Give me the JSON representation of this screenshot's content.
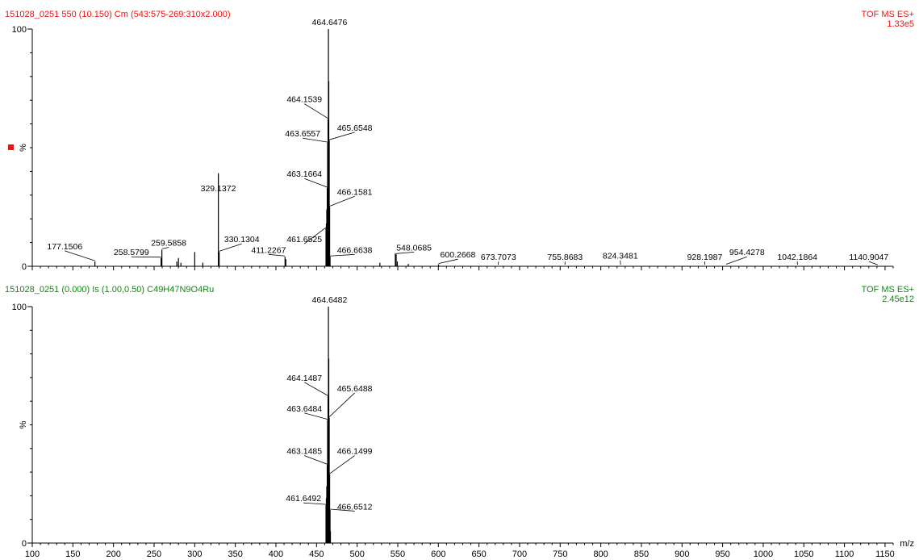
{
  "colors": {
    "measured": "#ee1111",
    "model": "#118811",
    "trace": "#000000"
  },
  "chart_data": [
    {
      "type": "line",
      "header_left": "151028_0251 550 (10.150) Cm (543:575-269:310x2.000)",
      "header_right_1": "TOF MS ES+",
      "header_right_2": "1.33e5",
      "ylabel": "%",
      "yticks": [
        "0",
        "100"
      ],
      "xlabel": "",
      "xlim": [
        100,
        1160
      ],
      "ylim": [
        0,
        100
      ],
      "peaks": [
        {
          "x": 177.1506,
          "y": 2.0
        },
        {
          "x": 258.5799,
          "y": 3.5
        },
        {
          "x": 259.5858,
          "y": 7.0
        },
        {
          "x": 278.0,
          "y": 2.0
        },
        {
          "x": 280.0,
          "y": 3.5
        },
        {
          "x": 283.0,
          "y": 1.5
        },
        {
          "x": 300.0,
          "y": 6.0
        },
        {
          "x": 310.0,
          "y": 1.5
        },
        {
          "x": 329.1372,
          "y": 39.0
        },
        {
          "x": 330.1304,
          "y": 6.0
        },
        {
          "x": 411.2267,
          "y": 4.0
        },
        {
          "x": 412.2,
          "y": 3.0
        },
        {
          "x": 461.6525,
          "y": 16.0
        },
        {
          "x": 462.1,
          "y": 18.0
        },
        {
          "x": 462.6,
          "y": 24.0
        },
        {
          "x": 463.1664,
          "y": 33.0
        },
        {
          "x": 463.6557,
          "y": 52.0
        },
        {
          "x": 464.1539,
          "y": 62.0
        },
        {
          "x": 464.6476,
          "y": 100.0
        },
        {
          "x": 465.1,
          "y": 78.0
        },
        {
          "x": 465.6548,
          "y": 53.0
        },
        {
          "x": 466.1581,
          "y": 25.0
        },
        {
          "x": 466.6638,
          "y": 4.0
        },
        {
          "x": 528.0,
          "y": 1.5
        },
        {
          "x": 547.0,
          "y": 5.5
        },
        {
          "x": 548.0685,
          "y": 5.0
        },
        {
          "x": 549.5,
          "y": 2.0
        },
        {
          "x": 563.0,
          "y": 1.0
        },
        {
          "x": 600.2668,
          "y": 0.8
        }
      ],
      "labels": [
        {
          "text": "177.1506",
          "x": 177.1506,
          "y": 2.0,
          "lx": 140,
          "ly": 6.5
        },
        {
          "text": "258.5799",
          "x": 258.5799,
          "y": 3.5,
          "lx": 222,
          "ly": 4.0
        },
        {
          "text": "259.5858",
          "x": 259.5858,
          "y": 7.0,
          "lx": 268,
          "ly": 8.0
        },
        {
          "text": "329.1372",
          "x": 329.1372,
          "y": 39.0,
          "lx": 329,
          "ly": 31.0
        },
        {
          "text": "330.1304",
          "x": 330.1304,
          "y": 6.0,
          "lx": 358,
          "ly": 9.5
        },
        {
          "text": "411.2267",
          "x": 411.2267,
          "y": 4.0,
          "lx": 391,
          "ly": 5.0
        },
        {
          "text": "461.6525",
          "x": 461.6525,
          "y": 16.0,
          "lx": 435,
          "ly": 9.5
        },
        {
          "text": "463.1664",
          "x": 463.1664,
          "y": 33.0,
          "lx": 435,
          "ly": 37.0
        },
        {
          "text": "463.6557",
          "x": 463.6557,
          "y": 52.0,
          "lx": 433,
          "ly": 54.0
        },
        {
          "text": "464.1539",
          "x": 464.1539,
          "y": 62.0,
          "lx": 435,
          "ly": 68.5
        },
        {
          "text": "464.6476",
          "x": 464.6476,
          "y": 100.0,
          "lx": 466,
          "ly": 101.0
        },
        {
          "text": "465.6548",
          "x": 465.6548,
          "y": 53.0,
          "lx": 497,
          "ly": 56.5
        },
        {
          "text": "466.1581",
          "x": 466.1581,
          "y": 25.0,
          "lx": 497,
          "ly": 29.5
        },
        {
          "text": "466.6638",
          "x": 466.6638,
          "y": 4.0,
          "lx": 497,
          "ly": 5.0
        },
        {
          "text": "548.0685",
          "x": 548.0685,
          "y": 5.0,
          "lx": 570,
          "ly": 6.0
        },
        {
          "text": "600.2668",
          "x": 600.2668,
          "y": 0.8,
          "lx": 624,
          "ly": 3.0
        },
        {
          "text": "673.7073",
          "x": 673.7073,
          "y": 0.3,
          "lx": 674,
          "ly": 2.0
        },
        {
          "text": "755.8683",
          "x": 755.8683,
          "y": 0.3,
          "lx": 756,
          "ly": 2.0
        },
        {
          "text": "824.3481",
          "x": 824.3481,
          "y": 0.3,
          "lx": 824,
          "ly": 2.5
        },
        {
          "text": "928.1987",
          "x": 928.1987,
          "y": 0.3,
          "lx": 928,
          "ly": 2.0
        },
        {
          "text": "954.4278",
          "x": 954.4278,
          "y": 0.5,
          "lx": 980,
          "ly": 4.0
        },
        {
          "text": "1042.1864",
          "x": 1042.1864,
          "y": 0.3,
          "lx": 1042,
          "ly": 2.0
        },
        {
          "text": "1140.9047",
          "x": 1140.9047,
          "y": 0.3,
          "lx": 1130,
          "ly": 2.0
        }
      ]
    },
    {
      "type": "line",
      "header_left": "151028_0251  (0.000) Is (1.00,0.50) C49H47N9O4Ru",
      "header_right_1": "TOF MS ES+",
      "header_right_2": "2.45e12",
      "ylabel": "%",
      "yticks": [
        "0",
        "100"
      ],
      "xlabel": "m/z",
      "xlim": [
        100,
        1160
      ],
      "ylim": [
        0,
        100
      ],
      "xticks": [
        100,
        150,
        200,
        250,
        300,
        350,
        400,
        450,
        500,
        550,
        600,
        650,
        700,
        750,
        800,
        850,
        900,
        950,
        1000,
        1050,
        1100,
        1150
      ],
      "peaks": [
        {
          "x": 461.6492,
          "y": 16.0
        },
        {
          "x": 462.1,
          "y": 19.0
        },
        {
          "x": 462.6,
          "y": 24.0
        },
        {
          "x": 463.1485,
          "y": 33.0
        },
        {
          "x": 463.6484,
          "y": 52.0
        },
        {
          "x": 464.1487,
          "y": 62.0
        },
        {
          "x": 464.6482,
          "y": 100.0
        },
        {
          "x": 465.1,
          "y": 78.0
        },
        {
          "x": 465.6488,
          "y": 53.0
        },
        {
          "x": 466.1499,
          "y": 29.0
        },
        {
          "x": 466.6512,
          "y": 14.0
        },
        {
          "x": 467.1,
          "y": 5.0
        }
      ],
      "labels": [
        {
          "text": "461.6492",
          "x": 461.6492,
          "y": 16.0,
          "lx": 434,
          "ly": 17.0
        },
        {
          "text": "463.1485",
          "x": 463.1485,
          "y": 33.0,
          "lx": 435,
          "ly": 37.0
        },
        {
          "text": "463.6484",
          "x": 463.6484,
          "y": 52.0,
          "lx": 435,
          "ly": 55.0
        },
        {
          "text": "464.1487",
          "x": 464.1487,
          "y": 62.0,
          "lx": 435,
          "ly": 68.0
        },
        {
          "text": "464.6482",
          "x": 464.6482,
          "y": 100.0,
          "lx": 466,
          "ly": 101.0
        },
        {
          "text": "465.6488",
          "x": 465.6488,
          "y": 53.0,
          "lx": 497,
          "ly": 63.5
        },
        {
          "text": "466.1499",
          "x": 466.1499,
          "y": 29.0,
          "lx": 497,
          "ly": 37.0
        },
        {
          "text": "466.6512",
          "x": 466.6512,
          "y": 14.0,
          "lx": 497,
          "ly": 13.5
        }
      ]
    }
  ]
}
